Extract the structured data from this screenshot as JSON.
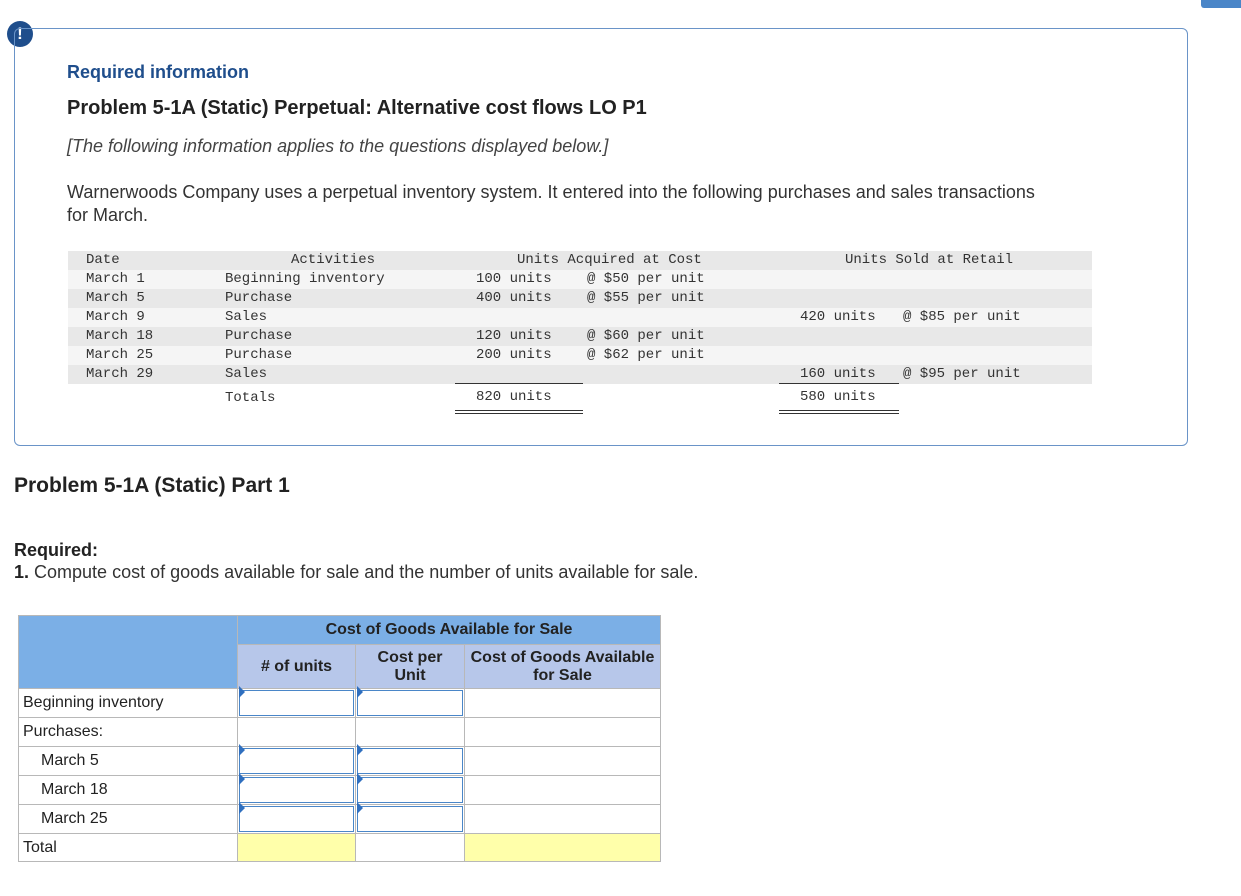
{
  "header": {
    "required_info": "Required information",
    "problem_title": "Problem 5-1A (Static) Perpetual: Alternative cost flows LO P1",
    "subnote": "[The following information applies to the questions displayed below.]",
    "intro_line1": "Warnerwoods Company uses a perpetual inventory system. It entered into the following purchases and sales transactions",
    "intro_line2": "for March."
  },
  "transactions": {
    "headers": {
      "date": "Date",
      "activities": "Activities",
      "acquired": "Units Acquired at Cost",
      "sold": "Units Sold at Retail"
    },
    "rows": [
      {
        "date": "March 1",
        "activity": "Beginning inventory",
        "acq_units": "100 units",
        "acq_cost": "@ $50 per unit",
        "sold_units": "",
        "sold_price": ""
      },
      {
        "date": "March 5",
        "activity": "Purchase",
        "acq_units": "400 units",
        "acq_cost": "@ $55 per unit",
        "sold_units": "",
        "sold_price": ""
      },
      {
        "date": "March 9",
        "activity": "Sales",
        "acq_units": "",
        "acq_cost": "",
        "sold_units": "420 units",
        "sold_price": "@ $85 per unit"
      },
      {
        "date": "March 18",
        "activity": "Purchase",
        "acq_units": "120 units",
        "acq_cost": "@ $60 per unit",
        "sold_units": "",
        "sold_price": ""
      },
      {
        "date": "March 25",
        "activity": "Purchase",
        "acq_units": "200 units",
        "acq_cost": "@ $62 per unit",
        "sold_units": "",
        "sold_price": ""
      },
      {
        "date": "March 29",
        "activity": "Sales",
        "acq_units": "",
        "acq_cost": "",
        "sold_units": "160 units",
        "sold_price": "@ $95 per unit"
      }
    ],
    "totals": {
      "label": "Totals",
      "acq_units": "820 units",
      "sold_units": "580 units"
    }
  },
  "part": {
    "title": "Problem 5-1A (Static) Part 1",
    "required_label": "Required:",
    "instruction_num": "1.",
    "instruction_text": "Compute cost of goods available for sale and the number of units available for sale."
  },
  "answer_table": {
    "group_header": "Cost of Goods Available for Sale",
    "col_units": "# of units",
    "col_cost_per_unit_l1": "Cost per",
    "col_cost_per_unit_l2": "Unit",
    "col_cogas_l1": "Cost of Goods Available",
    "col_cogas_l2": "for Sale",
    "rows": {
      "beginning": "Beginning inventory",
      "purchases": "Purchases:",
      "march5": "March 5",
      "march18": "March 18",
      "march25": "March 25",
      "total": "Total"
    }
  }
}
